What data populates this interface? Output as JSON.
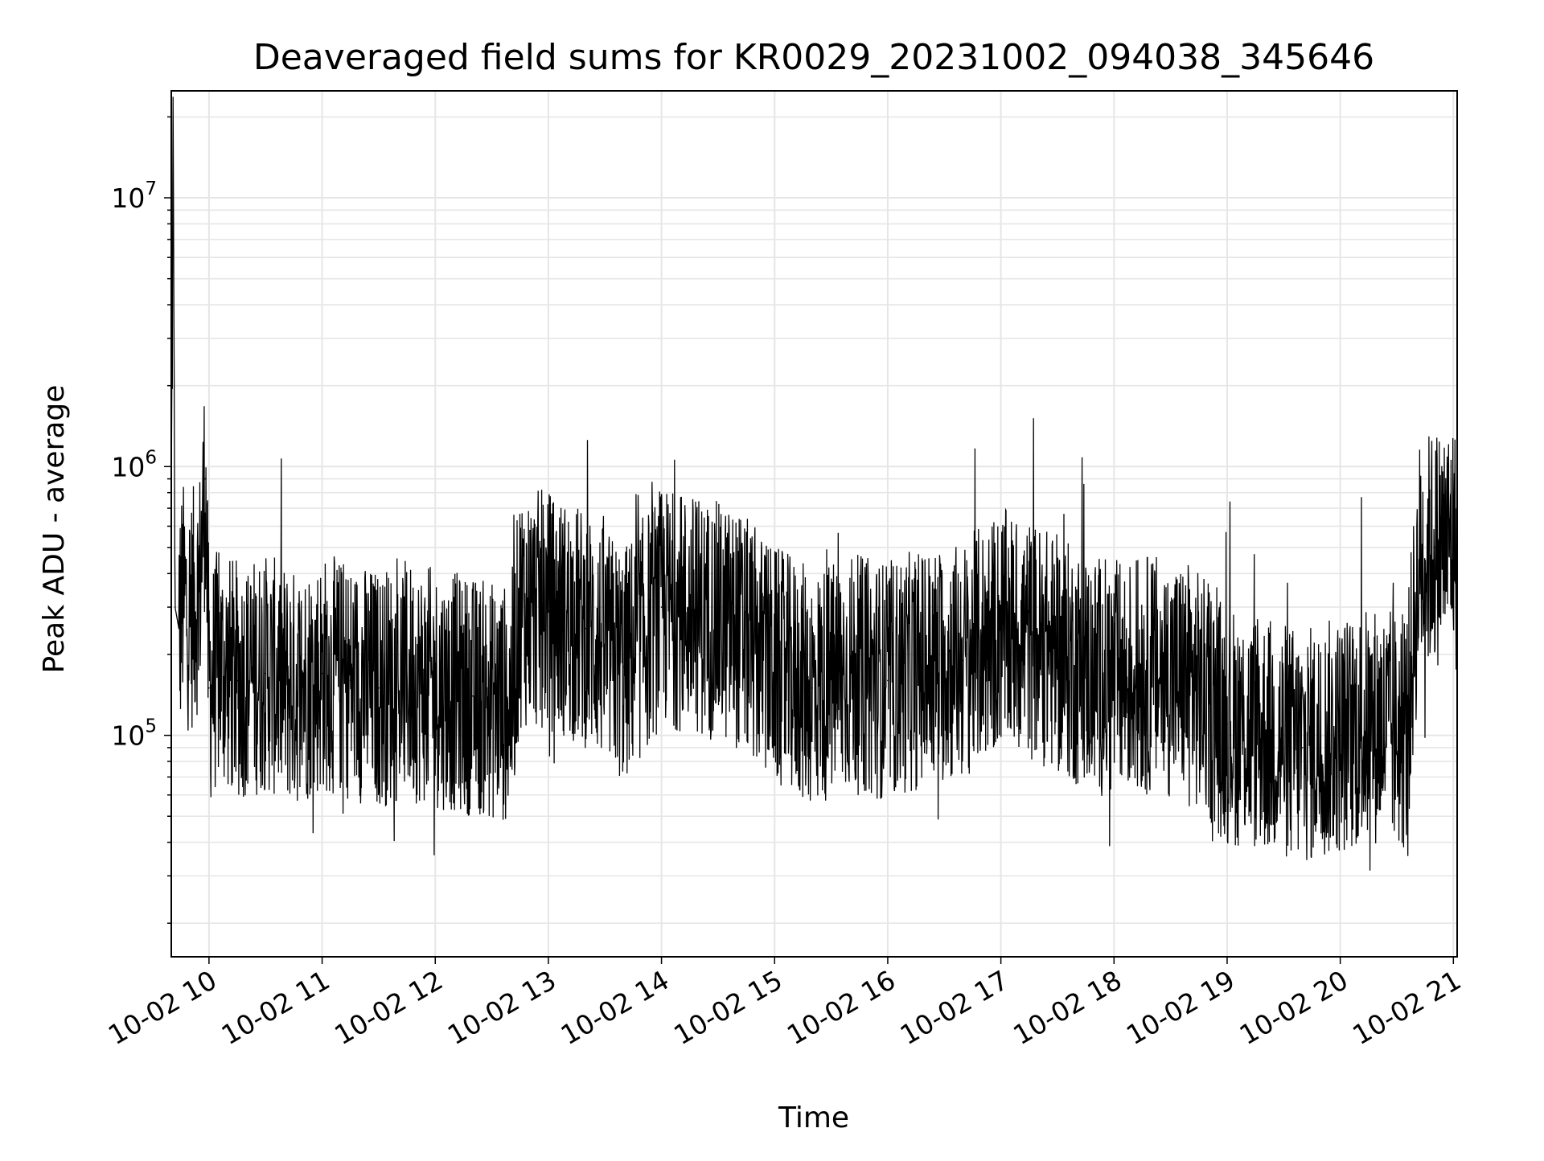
{
  "chart_data": {
    "type": "line",
    "title": "Deaveraged field sums for KR0029_20231002_094038_345646",
    "xlabel": "Time",
    "ylabel": "Peak ADU - average",
    "yscale": "log",
    "xlim": [
      "2023-10-02 09:40",
      "2023-10-02 21:02"
    ],
    "ylim": [
      15000,
      25000000
    ],
    "grid": true,
    "line_color": "#000000",
    "x_ticks": [
      "10-02 10",
      "10-02 11",
      "10-02 12",
      "10-02 13",
      "10-02 14",
      "10-02 15",
      "10-02 16",
      "10-02 17",
      "10-02 18",
      "10-02 19",
      "10-02 20",
      "10-02 21"
    ],
    "y_ticks": [
      {
        "base": "10",
        "exp": "5",
        "value": 100000
      },
      {
        "base": "10",
        "exp": "6",
        "value": 1000000
      },
      {
        "base": "10",
        "exp": "7",
        "value": 10000000
      }
    ],
    "series": [
      {
        "x": [
          "2023-10-02 09:40",
          "2023-10-02 09:41",
          "2023-10-02 09:42",
          "2023-10-02 09:44",
          "2023-10-02 09:46",
          "2023-10-02 09:50",
          "2023-10-02 09:55",
          "2023-10-02 09:58",
          "2023-10-02 10:00",
          "2023-10-02 10:05",
          "2023-10-02 10:15",
          "2023-10-02 10:30",
          "2023-10-02 10:45",
          "2023-10-02 11:00",
          "2023-10-02 11:15",
          "2023-10-02 11:30",
          "2023-10-02 11:45",
          "2023-10-02 12:00",
          "2023-10-02 12:20",
          "2023-10-02 12:40",
          "2023-10-02 12:45",
          "2023-10-02 13:00",
          "2023-10-02 13:20",
          "2023-10-02 13:40",
          "2023-10-02 14:00",
          "2023-10-02 14:20",
          "2023-10-02 14:40",
          "2023-10-02 15:00",
          "2023-10-02 15:20",
          "2023-10-02 15:40",
          "2023-10-02 16:00",
          "2023-10-02 16:20",
          "2023-10-02 16:40",
          "2023-10-02 17:00",
          "2023-10-02 17:20",
          "2023-10-02 17:40",
          "2023-10-02 18:00",
          "2023-10-02 18:20",
          "2023-10-02 18:40",
          "2023-10-02 19:00",
          "2023-10-02 19:20",
          "2023-10-02 19:40",
          "2023-10-02 20:00",
          "2023-10-02 20:20",
          "2023-10-02 20:35",
          "2023-10-02 20:42",
          "2023-10-02 20:50",
          "2023-10-02 21:00",
          "2023-10-02 21:02"
        ],
        "y": [
          500000,
          18000000,
          300000,
          250000,
          320000,
          280000,
          350000,
          900000,
          150000,
          180000,
          160000,
          170000,
          150000,
          170000,
          160000,
          150000,
          160000,
          150000,
          140000,
          130000,
          300000,
          290000,
          250000,
          180000,
          300000,
          280000,
          250000,
          180000,
          150000,
          170000,
          160000,
          180000,
          190000,
          250000,
          220000,
          180000,
          160000,
          170000,
          160000,
          110000,
          100000,
          90000,
          100000,
          110000,
          100000,
          450000,
          500000,
          550000,
          450000
        ]
      }
    ]
  }
}
